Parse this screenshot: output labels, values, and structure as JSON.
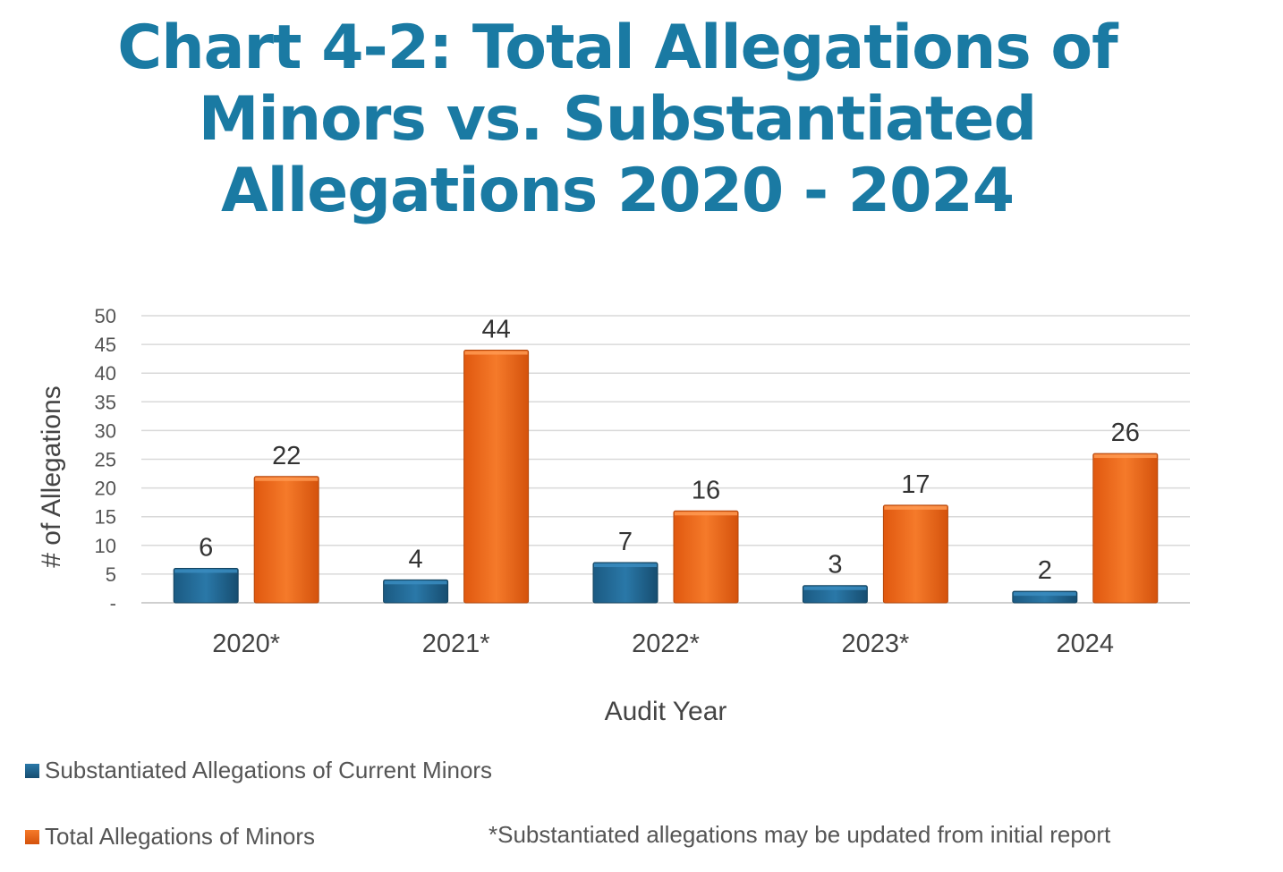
{
  "title_lines": [
    "Chart 4-2:  Total Allegations of",
    "Minors vs. Substantiated",
    "Allegations 2020 - 2024"
  ],
  "footnote": "*Substantiated allegations may be updated from initial report",
  "colors": {
    "title": "#1a7aa3",
    "substantiated": "#1f5f8b",
    "total": "#e8641c",
    "grid": "#d9d9d9"
  },
  "chart_data": {
    "type": "bar",
    "categories": [
      "2020*",
      "2021*",
      "2022*",
      "2023*",
      "2024"
    ],
    "series": [
      {
        "name": "Substantiated Allegations of Current Minors",
        "values": [
          6,
          4,
          7,
          3,
          2
        ]
      },
      {
        "name": "Total Allegations of Minors",
        "values": [
          22,
          44,
          16,
          17,
          26
        ]
      }
    ],
    "xlabel": "Audit Year",
    "ylabel": "# of Allegations",
    "ylim": [
      0,
      50
    ],
    "yticks": [
      {
        "value": 0,
        "label": "-"
      },
      {
        "value": 5,
        "label": "5"
      },
      {
        "value": 10,
        "label": "10"
      },
      {
        "value": 15,
        "label": "15"
      },
      {
        "value": 20,
        "label": "20"
      },
      {
        "value": 25,
        "label": "25"
      },
      {
        "value": 30,
        "label": "30"
      },
      {
        "value": 35,
        "label": "35"
      },
      {
        "value": 40,
        "label": "40"
      },
      {
        "value": 45,
        "label": "45"
      },
      {
        "value": 50,
        "label": "50"
      }
    ],
    "grid": true,
    "legend_position": "bottom-left"
  }
}
